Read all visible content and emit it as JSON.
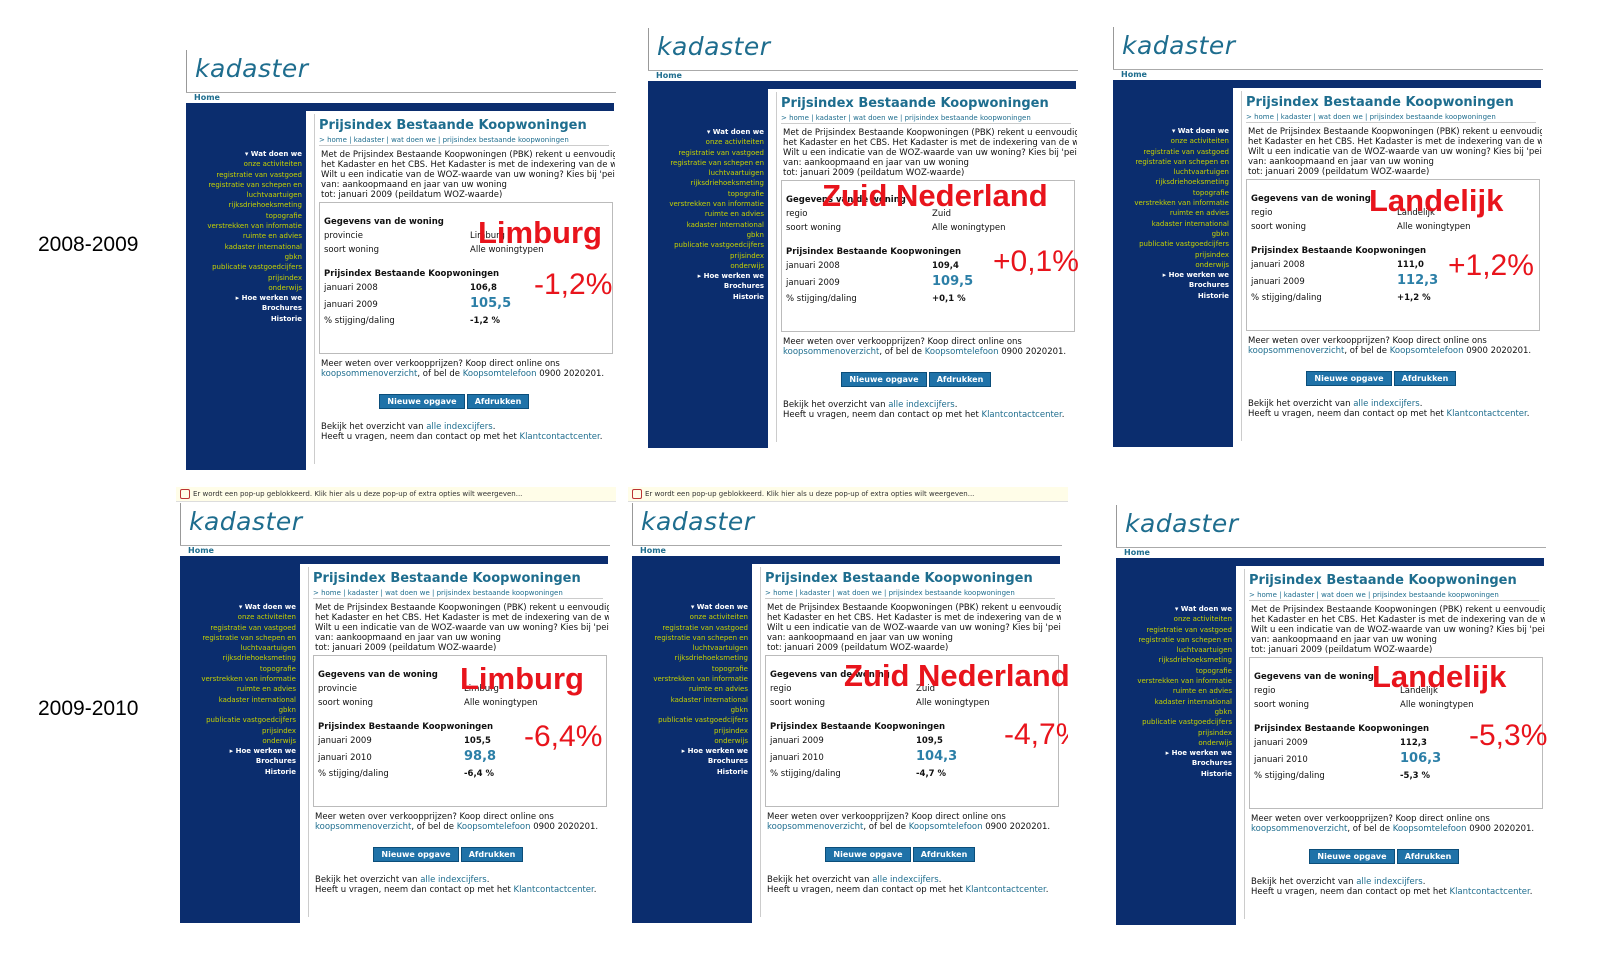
{
  "rows": [
    {
      "label": "2008-2009"
    },
    {
      "label": "2009-2010"
    }
  ],
  "site": {
    "logo": "kadaster",
    "home": "Home",
    "page_title": "Prijsindex Bestaande Koopwoningen",
    "breadcrumb": "> home  |  kadaster  |  wat doen we  |  prijsindex bestaande koopwoningen",
    "intro": [
      "Met de Prijsindex Bestaande Koopwoningen (PBK) rekent u eenvoudig uit wat",
      "het Kadaster en het CBS. Het Kadaster is met de indexering van de woningwaarde",
      "Wilt u een indicatie van de WOZ-waarde van uw woning? Kies bij 'peildatum'",
      "van: aankoopmaand en jaar van uw woning",
      "tot: januari 2009 (peildatum WOZ-waarde)"
    ],
    "sidebar": [
      {
        "text": "▾ Wat doen we",
        "bold": true
      },
      {
        "text": "onze activiteiten"
      },
      {
        "text": "registratie van vastgoed"
      },
      {
        "text": "registratie van schepen en"
      },
      {
        "text": "luchtvaartuigen"
      },
      {
        "text": "rijksdriehoeksmeting"
      },
      {
        "text": "topografie"
      },
      {
        "text": "verstrekken van informatie"
      },
      {
        "text": "ruimte en advies"
      },
      {
        "text": "kadaster international"
      },
      {
        "text": "gbkn"
      },
      {
        "text": "publicatie vastgoedcijfers"
      },
      {
        "text": "prijsindex"
      },
      {
        "text": "onderwijs"
      },
      {
        "text": "▸ Hoe werken we",
        "bold": true
      },
      {
        "text": "Brochures",
        "bold": true
      },
      {
        "text": "Historie",
        "bold": true
      }
    ],
    "gegevens_heading": "Gegevens van de woning",
    "soort_label": "soort woning",
    "soort_value": "Alle woningtypen",
    "pbk_heading": "Prijsindex Bestaande Koopwoningen",
    "pct_label": "% stijging/daling",
    "more_line1": "Meer weten over verkoopprijzen? Koop direct online ons",
    "more_link1": "koopsommenoverzicht",
    "more_mid": ", of bel de ",
    "more_link2": "Koopsomtelefoon",
    "more_end": " 0900 2020201.",
    "btn_new": "Nieuwe opgave",
    "btn_print": "Afdrukken",
    "overview_pre": "Bekijk het overzicht van ",
    "overview_link": "alle indexcijfers",
    "overview_post": ".",
    "contact_pre": "Heeft u vragen, neem dan contact op met het ",
    "contact_link": "Klantcontactcenter",
    "contact_post": ".",
    "popup_text": "Er wordt een pop-up geblokkeerd. Klik hier als u deze pop-up of extra opties wilt weergeven..."
  },
  "panels": [
    {
      "region_label": "provincie",
      "region_value": "Limburg",
      "date1": "januari 2008",
      "val1": "106,8",
      "date2": "januari 2009",
      "val2": "105,5",
      "pct": "-1,2 %",
      "annot_title": "Limburg",
      "annot_pct": "-1,2%",
      "popup": false
    },
    {
      "region_label": "regio",
      "region_value": "Zuid",
      "date1": "januari 2008",
      "val1": "109,4",
      "date2": "januari 2009",
      "val2": "109,5",
      "pct": "+0,1 %",
      "annot_title": "Zuid Nederland",
      "annot_pct": "+0,1%",
      "popup": false
    },
    {
      "region_label": "regio",
      "region_value": "Landelijk",
      "date1": "januari 2008",
      "val1": "111,0",
      "date2": "januari 2009",
      "val2": "112,3",
      "pct": "+1,2 %",
      "annot_title": "Landelijk",
      "annot_pct": "+1,2%",
      "popup": false
    },
    {
      "region_label": "provincie",
      "region_value": "Limburg",
      "date1": "januari 2009",
      "val1": "105,5",
      "date2": "januari 2010",
      "val2": "98,8",
      "pct": "-6,4 %",
      "annot_title": "Limburg",
      "annot_pct": "-6,4%",
      "popup": true
    },
    {
      "region_label": "regio",
      "region_value": "Zuid",
      "date1": "januari 2009",
      "val1": "109,5",
      "date2": "januari 2010",
      "val2": "104,3",
      "pct": "-4,7 %",
      "annot_title": "Zuid Nederland",
      "annot_pct": "-4,7%",
      "popup": true
    },
    {
      "region_label": "regio",
      "region_value": "Landelijk",
      "date1": "januari 2009",
      "val1": "112,3",
      "date2": "januari 2010",
      "val2": "106,3",
      "pct": "-5,3 %",
      "annot_title": "Landelijk",
      "annot_pct": "-5,3%",
      "popup": false
    }
  ]
}
